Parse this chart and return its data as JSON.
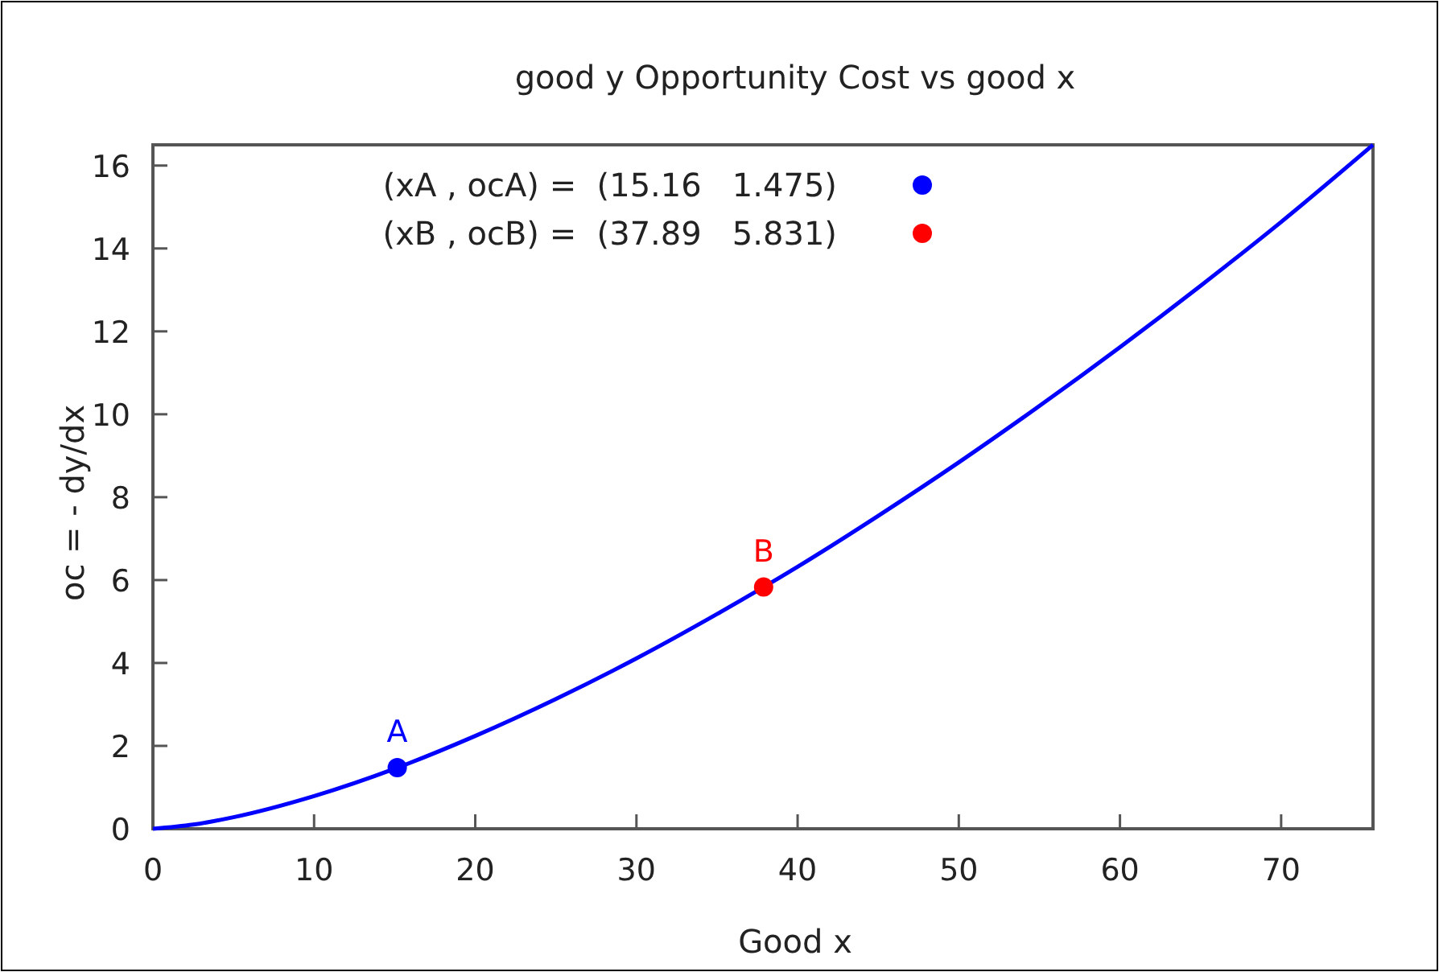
{
  "chart_data": {
    "type": "line",
    "title": "good y Opportunity Cost vs good x",
    "xlabel": "Good x",
    "ylabel": "oc = - dy/dx",
    "xlim": [
      0,
      75.7
    ],
    "ylim": [
      0,
      16.5
    ],
    "xticks": [
      0,
      10,
      20,
      30,
      40,
      50,
      60,
      70
    ],
    "yticks": [
      0,
      2,
      4,
      6,
      8,
      10,
      12,
      14,
      16
    ],
    "legend": "top",
    "grid": false,
    "series": [
      {
        "color": "#0000ff",
        "x": [
          0,
          2.5,
          5,
          10,
          15,
          20,
          25,
          30,
          35,
          40,
          45,
          50,
          55,
          60,
          65,
          70,
          75.7
        ],
        "values": [
          0,
          0.1,
          0.28,
          0.79,
          1.45,
          2.24,
          3.13,
          4.11,
          5.18,
          6.32,
          7.55,
          8.84,
          10.2,
          11.62,
          13.1,
          14.64,
          16.5
        ]
      },
      {
        "type": "scatter",
        "name": "(xA , ocA) =  (15.16   1.475)",
        "color": "#0000ff",
        "x": [
          15.16
        ],
        "values": [
          1.475
        ]
      },
      {
        "type": "scatter",
        "name": "(xB , ocB) =  (37.89   5.831)",
        "color": "#ff0000",
        "x": [
          37.89
        ],
        "values": [
          5.831
        ]
      }
    ],
    "annotations": [
      {
        "text": "A",
        "x": 15.16,
        "y": 1.475
      },
      {
        "text": "B",
        "x": 37.89,
        "y": 5.831
      }
    ]
  }
}
